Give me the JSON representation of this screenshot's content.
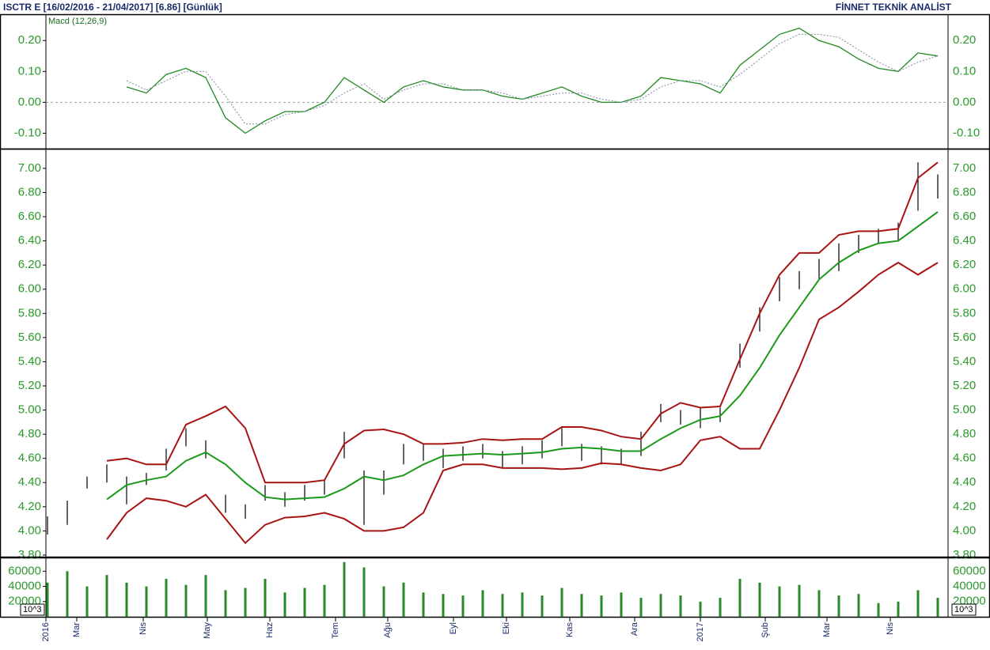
{
  "header": {
    "title": "ISCTR E  [16/02/2016 - 21/04/2017]  [6.86]  [Günlük]",
    "brand": "FİNNET TEKNİK ANALİST"
  },
  "chart_data": [
    {
      "type": "line",
      "title": "Macd (12,26,9)",
      "zero_line": true,
      "x": [
        0,
        1,
        2,
        3,
        4,
        5,
        6,
        7,
        8,
        9,
        10,
        11,
        12,
        13,
        14,
        15,
        16,
        17,
        18,
        19,
        20,
        21,
        22,
        23,
        24,
        25,
        26,
        27,
        28,
        29,
        30,
        31,
        32,
        33,
        34,
        35,
        36,
        37,
        38,
        39,
        40,
        41,
        42,
        43,
        44,
        45
      ],
      "xlim": [
        -0.08,
        45.52
      ],
      "ylim": [
        -0.15,
        0.28
      ],
      "yticks": [
        {
          "value": -0.1,
          "label": "-0.10"
        },
        {
          "value": 0,
          "label": "0.00"
        },
        {
          "value": 0.1,
          "label": "0.10"
        },
        {
          "value": 0.2,
          "label": "0.20"
        }
      ],
      "series": [
        {
          "color": "#1f8a1f",
          "dash": false,
          "values": [
            null,
            null,
            null,
            null,
            0.05,
            0.03,
            0.09,
            0.11,
            0.08,
            -0.05,
            -0.1,
            -0.06,
            -0.03,
            -0.03,
            0.0,
            0.08,
            0.04,
            0.0,
            0.05,
            0.07,
            0.05,
            0.04,
            0.04,
            0.02,
            0.01,
            0.03,
            0.05,
            0.02,
            0.0,
            0.0,
            0.02,
            0.08,
            0.07,
            0.06,
            0.03,
            0.12,
            0.17,
            0.22,
            0.24,
            0.2,
            0.18,
            0.14,
            0.11,
            0.1,
            0.16,
            0.15
          ]
        },
        {
          "color": "#7a8aa8",
          "dash": true,
          "values": [
            null,
            null,
            null,
            null,
            0.07,
            0.04,
            0.07,
            0.1,
            0.1,
            0.02,
            -0.07,
            -0.07,
            -0.04,
            -0.03,
            -0.01,
            0.03,
            0.06,
            0.01,
            0.04,
            0.06,
            0.06,
            0.04,
            0.04,
            0.03,
            0.01,
            0.02,
            0.03,
            0.03,
            0.01,
            0.0,
            0.01,
            0.05,
            0.07,
            0.07,
            0.05,
            0.09,
            0.14,
            0.19,
            0.22,
            0.22,
            0.21,
            0.17,
            0.13,
            0.1,
            0.13,
            0.15
          ]
        }
      ]
    },
    {
      "type": "hl-bands",
      "x": [
        0,
        1,
        2,
        3,
        4,
        5,
        6,
        7,
        8,
        9,
        10,
        11,
        12,
        13,
        14,
        15,
        16,
        17,
        18,
        19,
        20,
        21,
        22,
        23,
        24,
        25,
        26,
        27,
        28,
        29,
        30,
        31,
        32,
        33,
        34,
        35,
        36,
        37,
        38,
        39,
        40,
        41,
        42,
        43,
        44,
        45
      ],
      "xlim": [
        -0.08,
        45.52
      ],
      "ylim": [
        3.78,
        7.15
      ],
      "yticks": [
        {
          "value": 3.8,
          "label": "3.80"
        },
        {
          "value": 4,
          "label": "4.00"
        },
        {
          "value": 4.2,
          "label": "4.20"
        },
        {
          "value": 4.4,
          "label": "4.40"
        },
        {
          "value": 4.6,
          "label": "4.60"
        },
        {
          "value": 4.8,
          "label": "4.80"
        },
        {
          "value": 5,
          "label": "5.00"
        },
        {
          "value": 5.2,
          "label": "5.20"
        },
        {
          "value": 5.4,
          "label": "5.40"
        },
        {
          "value": 5.6,
          "label": "5.60"
        },
        {
          "value": 5.8,
          "label": "5.80"
        },
        {
          "value": 6,
          "label": "6.00"
        },
        {
          "value": 6.2,
          "label": "6.20"
        },
        {
          "value": 6.4,
          "label": "6.40"
        },
        {
          "value": 6.6,
          "label": "6.60"
        },
        {
          "value": 6.8,
          "label": "6.80"
        },
        {
          "value": 7,
          "label": "7.00"
        }
      ],
      "bar_color": "#000000",
      "high": [
        4.12,
        4.25,
        4.45,
        4.55,
        4.45,
        4.48,
        4.68,
        4.85,
        4.75,
        4.3,
        4.22,
        4.38,
        4.32,
        4.38,
        4.42,
        4.82,
        4.5,
        4.5,
        4.72,
        4.72,
        4.68,
        4.7,
        4.72,
        4.66,
        4.7,
        4.75,
        4.85,
        4.72,
        4.7,
        4.68,
        4.82,
        5.05,
        5.0,
        5.02,
        5.02,
        5.55,
        5.85,
        6.1,
        6.15,
        6.25,
        6.38,
        6.45,
        6.5,
        6.55,
        7.05,
        6.95
      ],
      "low": [
        3.97,
        4.05,
        4.35,
        4.4,
        4.22,
        4.38,
        4.5,
        4.7,
        4.6,
        4.15,
        4.1,
        4.25,
        4.2,
        4.25,
        4.3,
        4.6,
        4.05,
        4.3,
        4.55,
        4.58,
        4.52,
        4.58,
        4.6,
        4.52,
        4.55,
        4.6,
        4.7,
        4.58,
        4.55,
        4.55,
        4.62,
        4.9,
        4.88,
        4.85,
        4.9,
        5.35,
        5.65,
        5.9,
        6.0,
        6.08,
        6.15,
        6.3,
        6.38,
        6.4,
        6.65,
        6.75
      ],
      "series": [
        {
          "color": "#a81414",
          "values": [
            null,
            null,
            null,
            4.58,
            4.6,
            4.55,
            4.55,
            4.88,
            4.95,
            5.03,
            4.85,
            4.4,
            4.4,
            4.4,
            4.42,
            4.72,
            4.83,
            4.84,
            4.8,
            4.72,
            4.72,
            4.73,
            4.76,
            4.75,
            4.76,
            4.76,
            4.86,
            4.86,
            4.83,
            4.78,
            4.76,
            4.97,
            5.06,
            5.02,
            5.03,
            5.42,
            5.8,
            6.12,
            6.3,
            6.3,
            6.45,
            6.48,
            6.48,
            6.5,
            6.92,
            7.05
          ]
        },
        {
          "color": "#1a9a1a",
          "values": [
            null,
            null,
            null,
            4.26,
            4.38,
            4.42,
            4.45,
            4.58,
            4.65,
            4.55,
            4.4,
            4.28,
            4.26,
            4.27,
            4.28,
            4.35,
            4.45,
            4.42,
            4.46,
            4.55,
            4.62,
            4.63,
            4.64,
            4.63,
            4.64,
            4.65,
            4.68,
            4.69,
            4.68,
            4.66,
            4.66,
            4.76,
            4.85,
            4.92,
            4.95,
            5.12,
            5.35,
            5.62,
            5.85,
            6.08,
            6.22,
            6.32,
            6.38,
            6.4,
            6.52,
            6.64
          ]
        },
        {
          "color": "#a81414",
          "values": [
            null,
            null,
            null,
            3.93,
            4.15,
            4.27,
            4.25,
            4.2,
            4.3,
            4.1,
            3.9,
            4.05,
            4.11,
            4.12,
            4.15,
            4.1,
            4.0,
            4.0,
            4.03,
            4.15,
            4.5,
            4.55,
            4.55,
            4.52,
            4.52,
            4.52,
            4.51,
            4.52,
            4.56,
            4.55,
            4.52,
            4.5,
            4.55,
            4.75,
            4.78,
            4.68,
            4.68,
            5.0,
            5.35,
            5.75,
            5.85,
            5.98,
            6.12,
            6.22,
            6.12,
            6.22
          ]
        }
      ]
    },
    {
      "type": "bar",
      "unit_label": "10^3",
      "color": "#2a8a2a",
      "x": [
        0,
        1,
        2,
        3,
        4,
        5,
        6,
        7,
        8,
        9,
        10,
        11,
        12,
        13,
        14,
        15,
        16,
        17,
        18,
        19,
        20,
        21,
        22,
        23,
        24,
        25,
        26,
        27,
        28,
        29,
        30,
        31,
        32,
        33,
        34,
        35,
        36,
        37,
        38,
        39,
        40,
        41,
        42,
        43,
        44,
        45
      ],
      "xlim": [
        -0.08,
        45.52
      ],
      "xticks": [
        {
          "value": -0.08,
          "label": "2016"
        },
        {
          "value": 1.48,
          "label": "Mar"
        },
        {
          "value": 4.84,
          "label": "Nis"
        },
        {
          "value": 8.08,
          "label": "May"
        },
        {
          "value": 11.24,
          "label": "Haz"
        },
        {
          "value": 14.56,
          "label": "Tem"
        },
        {
          "value": 17.2,
          "label": "Ağu"
        },
        {
          "value": 20.52,
          "label": "Eyl"
        },
        {
          "value": 23.2,
          "label": "Eki"
        },
        {
          "value": 26.4,
          "label": "Kas"
        },
        {
          "value": 29.68,
          "label": "Ara"
        },
        {
          "value": 33,
          "label": "2017"
        },
        {
          "value": 36.28,
          "label": "Şub"
        },
        {
          "value": 39.4,
          "label": "Mar"
        },
        {
          "value": 42.6,
          "label": "Nis"
        }
      ],
      "ylim": [
        0,
        77000
      ],
      "yticks": [
        20000,
        40000,
        60000
      ],
      "values": [
        45000,
        60000,
        40000,
        55000,
        45000,
        40000,
        50000,
        42000,
        55000,
        35000,
        38000,
        50000,
        32000,
        38000,
        42000,
        72000,
        65000,
        40000,
        45000,
        32000,
        30000,
        28000,
        35000,
        30000,
        32000,
        28000,
        38000,
        30000,
        28000,
        32000,
        25000,
        30000,
        28000,
        20000,
        25000,
        50000,
        45000,
        40000,
        42000,
        35000,
        28000,
        30000,
        18000,
        20000,
        35000,
        25000
      ]
    }
  ]
}
